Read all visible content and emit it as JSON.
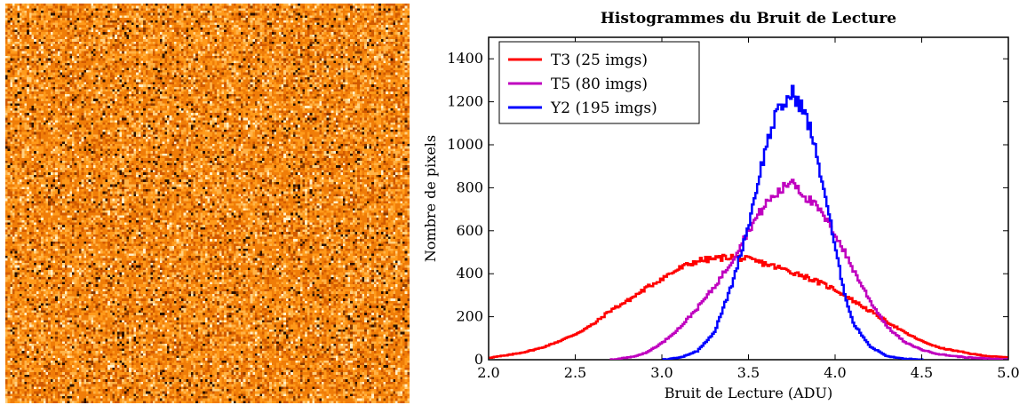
{
  "left_image": {
    "icon": "noise-map-image",
    "palette": [
      "#2a1000",
      "#8a3a00",
      "#d25a00",
      "#f07d08",
      "#ff9a1a",
      "#ffb347",
      "#ffd080",
      "#fff0c8"
    ]
  },
  "chart_data": {
    "type": "line",
    "style": "step histogram",
    "title": "Histogrammes du Bruit de Lecture",
    "xlabel": "Bruit de Lecture (ADU)",
    "ylabel": "Nombre de pixels",
    "xlim": [
      2.0,
      5.0
    ],
    "ylim": [
      0,
      1500
    ],
    "x_ticks": [
      "2.0",
      "2.5",
      "3.0",
      "3.5",
      "4.0",
      "4.5",
      "5.0"
    ],
    "y_ticks": [
      "0",
      "200",
      "400",
      "600",
      "800",
      "1000",
      "1200",
      "1400"
    ],
    "grid": false,
    "legend_position": "top-left",
    "series": [
      {
        "name": "T3 (25 imgs)",
        "color": "#ff0000",
        "x": [
          2.0,
          2.1,
          2.2,
          2.3,
          2.4,
          2.5,
          2.6,
          2.7,
          2.8,
          2.9,
          3.0,
          3.1,
          3.2,
          3.3,
          3.4,
          3.5,
          3.6,
          3.7,
          3.8,
          3.9,
          4.0,
          4.1,
          4.2,
          4.3,
          4.4,
          4.5,
          4.6,
          4.7,
          4.8,
          4.9,
          5.0
        ],
        "values": [
          10,
          20,
          35,
          55,
          85,
          120,
          165,
          230,
          275,
          330,
          380,
          425,
          460,
          470,
          480,
          465,
          445,
          420,
          395,
          360,
          325,
          275,
          225,
          175,
          125,
          85,
          55,
          40,
          25,
          15,
          10
        ]
      },
      {
        "name": "T5 (80 imgs)",
        "color": "#bf00bf",
        "x": [
          2.7,
          2.8,
          2.9,
          3.0,
          3.1,
          3.2,
          3.3,
          3.4,
          3.5,
          3.6,
          3.7,
          3.75,
          3.8,
          3.9,
          4.0,
          4.1,
          4.2,
          4.3,
          4.4,
          4.5,
          4.6,
          4.7,
          4.8,
          4.9,
          5.0
        ],
        "values": [
          0,
          10,
          30,
          80,
          150,
          240,
          340,
          460,
          610,
          730,
          800,
          840,
          780,
          700,
          580,
          420,
          270,
          150,
          80,
          45,
          25,
          15,
          8,
          4,
          2
        ]
      },
      {
        "name": "Y2 (195 imgs)",
        "color": "#0000ff",
        "x": [
          3.0,
          3.1,
          3.2,
          3.3,
          3.4,
          3.5,
          3.55,
          3.6,
          3.65,
          3.7,
          3.75,
          3.8,
          3.85,
          3.9,
          3.95,
          4.0,
          4.05,
          4.1,
          4.2,
          4.3,
          4.4,
          4.5
        ],
        "values": [
          0,
          10,
          40,
          130,
          350,
          640,
          830,
          1000,
          1130,
          1190,
          1240,
          1180,
          1080,
          910,
          720,
          500,
          310,
          170,
          60,
          15,
          4,
          0
        ]
      }
    ]
  }
}
